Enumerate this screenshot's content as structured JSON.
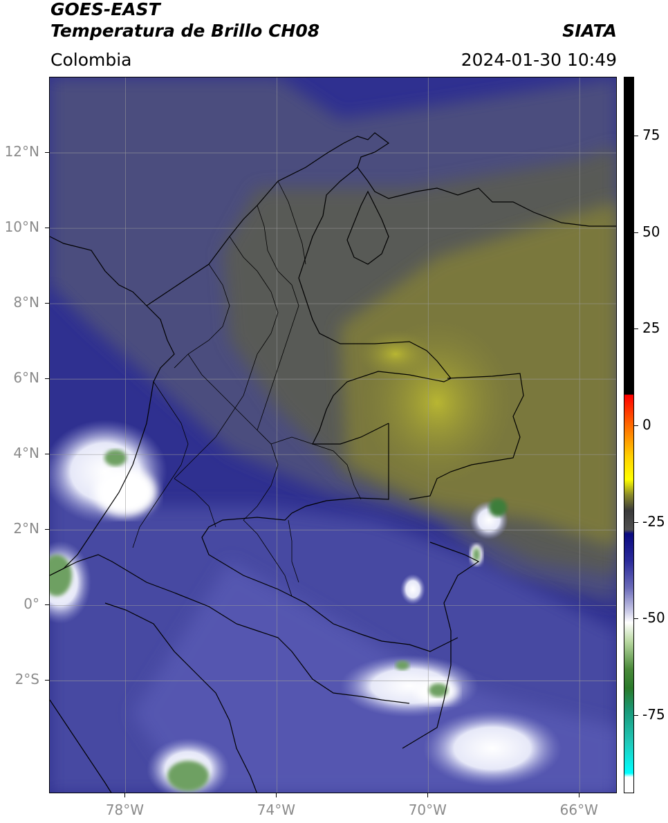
{
  "header": {
    "title_line1": "GOES-EAST",
    "title_line2": "Temperatura de Brillo CH08",
    "brand": "SIATA",
    "region": "Colombia",
    "timestamp": "2024-01-30 10:49"
  },
  "map": {
    "projection": "PlateCarree",
    "extent": {
      "lon_min": -80,
      "lon_max": -65,
      "lat_min": -5,
      "lat_max": 14
    },
    "lat_ticks": [
      {
        "value": 12,
        "label": "12°N"
      },
      {
        "value": 10,
        "label": "10°N"
      },
      {
        "value": 8,
        "label": "8°N"
      },
      {
        "value": 6,
        "label": "6°N"
      },
      {
        "value": 4,
        "label": "4°N"
      },
      {
        "value": 2,
        "label": "2°N"
      },
      {
        "value": 0,
        "label": "0°"
      },
      {
        "value": -2,
        "label": "2°S"
      }
    ],
    "lon_ticks": [
      {
        "value": -78,
        "label": "78°W"
      },
      {
        "value": -74,
        "label": "74°W"
      },
      {
        "value": -70,
        "label": "70°W"
      },
      {
        "value": -66,
        "label": "66°W"
      }
    ],
    "gridlines": true
  },
  "colorbar": {
    "range": [
      -95,
      90
    ],
    "ticks": [
      {
        "value": 75,
        "label": "75"
      },
      {
        "value": 50,
        "label": "50"
      },
      {
        "value": 25,
        "label": "25"
      },
      {
        "value": 0,
        "label": "0"
      },
      {
        "value": -25,
        "label": "-25"
      },
      {
        "value": -50,
        "label": "-50"
      },
      {
        "value": -75,
        "label": "-75"
      }
    ],
    "stops": [
      {
        "value": 90,
        "color": "#000000"
      },
      {
        "value": 8,
        "color": "#000000"
      },
      {
        "value": 7.9,
        "color": "#ff0000"
      },
      {
        "value": 0,
        "color": "#ff6a00"
      },
      {
        "value": -8,
        "color": "#ffd000"
      },
      {
        "value": -14,
        "color": "#ffff00"
      },
      {
        "value": -18,
        "color": "#8a8a2a"
      },
      {
        "value": -22,
        "color": "#3a3a3a"
      },
      {
        "value": -27,
        "color": "#505050"
      },
      {
        "value": -28,
        "color": "#0a0a80"
      },
      {
        "value": -35,
        "color": "#2a2a9a"
      },
      {
        "value": -42,
        "color": "#6a6ab8"
      },
      {
        "value": -48,
        "color": "#c8c8e6"
      },
      {
        "value": -51,
        "color": "#ffffff"
      },
      {
        "value": -56,
        "color": "#b8d8a0"
      },
      {
        "value": -63,
        "color": "#4a8a3a"
      },
      {
        "value": -68,
        "color": "#2a7a2a"
      },
      {
        "value": -74,
        "color": "#1a9a7a"
      },
      {
        "value": -82,
        "color": "#20c8b8"
      },
      {
        "value": -90,
        "color": "#00ffff"
      },
      {
        "value": -91,
        "color": "#ffffff"
      },
      {
        "value": -95,
        "color": "#ffffff"
      }
    ]
  },
  "colors": {
    "land_tan": "#6e6a42",
    "dry_yellow": "#9a9838",
    "bright_yellow": "#b8b632",
    "sea_blue": "#2a2a86",
    "mid_blue": "#4a4ba6",
    "light_blue": "#8a8ccc",
    "cloud_white": "#eef0fb",
    "cloud_green": "#6ea062",
    "deep_green": "#3e7e3a",
    "grid": "#9a9a9a"
  }
}
